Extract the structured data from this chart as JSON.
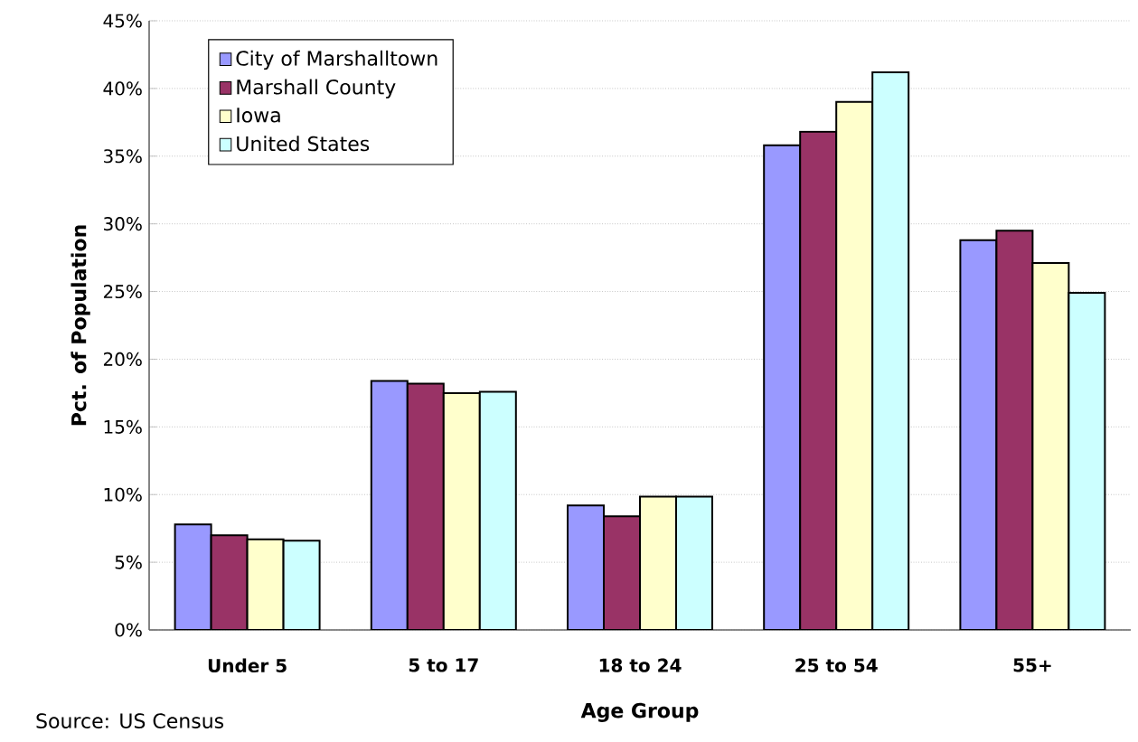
{
  "chart_data": {
    "type": "bar",
    "categories": [
      "Under 5",
      "5 to 17",
      "18 to 24",
      "25 to 54",
      "55+"
    ],
    "series": [
      {
        "name": "City of Marshalltown",
        "color": "#9999ff",
        "values": [
          7.8,
          18.4,
          9.2,
          35.8,
          28.8
        ]
      },
      {
        "name": "Marshall County",
        "color": "#993366",
        "values": [
          7.0,
          18.2,
          8.4,
          36.8,
          29.5
        ]
      },
      {
        "name": "Iowa",
        "color": "#ffffcc",
        "values": [
          6.7,
          17.5,
          9.85,
          39.0,
          27.1
        ]
      },
      {
        "name": "United States",
        "color": "#ccffff",
        "values": [
          6.6,
          17.6,
          9.85,
          41.2,
          24.9
        ]
      }
    ],
    "xlabel": "Age Group",
    "ylabel": "Pct. of Population",
    "ylim": [
      0,
      45
    ],
    "yticks": [
      {
        "value": 0,
        "label": "0%"
      },
      {
        "value": 5,
        "label": "5%"
      },
      {
        "value": 10,
        "label": "10%"
      },
      {
        "value": 15,
        "label": "15%"
      },
      {
        "value": 20,
        "label": "20%"
      },
      {
        "value": 25,
        "label": "25%"
      },
      {
        "value": 30,
        "label": "30%"
      },
      {
        "value": 35,
        "label": "35%"
      },
      {
        "value": 40,
        "label": "40%"
      },
      {
        "value": 45,
        "label": "45%"
      }
    ],
    "grid": "y",
    "legend": "top left",
    "annotations": [
      "Source: US Census"
    ]
  }
}
